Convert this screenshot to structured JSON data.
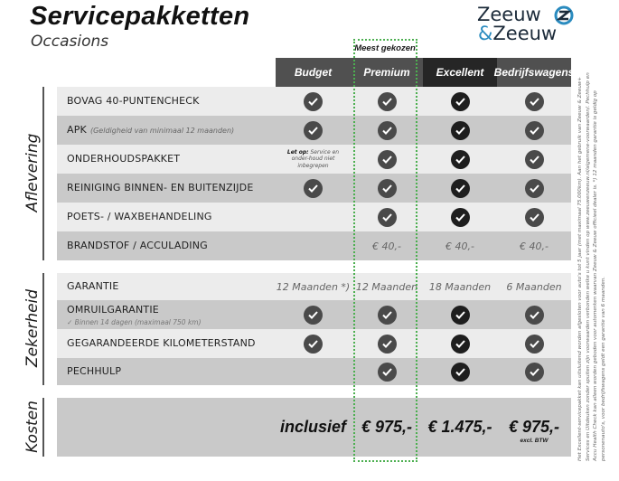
{
  "header": {
    "title": "Servicepakketten",
    "subtitle": "Occasions",
    "logo_line1": "Zeeuw",
    "logo_amp": "&",
    "logo_line2": "Zeeuw",
    "badge": "Meest gekozen"
  },
  "columns": [
    {
      "label": "Budget",
      "bg": "#505050",
      "check": "#4a4a4a"
    },
    {
      "label": "Premium",
      "bg": "#505050",
      "check": "#4a4a4a"
    },
    {
      "label": "Excellent",
      "bg": "#262626",
      "check": "#1e1e1e"
    },
    {
      "label": "Bedrijfswagens",
      "bg": "#505050",
      "check": "#4a4a4a"
    }
  ],
  "sections": [
    {
      "label": "Aflevering",
      "rows": [
        {
          "label": "BOVAG 40-PUNTENCHECK",
          "cells": [
            "check",
            "check",
            "check",
            "check"
          ]
        },
        {
          "label": "APK",
          "note": "(Geldigheid van minimaal 12 maanden)",
          "cells": [
            "check",
            "check",
            "check",
            "check"
          ]
        },
        {
          "label": "ONDERHOUDSPAKKET",
          "cells": [
            "",
            "check",
            "check",
            "check"
          ],
          "budget_note_bold": "Let op:",
          "budget_note": "Service en onder-houd niet inbegrepen"
        },
        {
          "label": "REINIGING BINNEN- EN BUITENZIJDE",
          "cells": [
            "check",
            "check",
            "check",
            "check"
          ]
        },
        {
          "label": "POETS- / WAXBEHANDELING",
          "cells": [
            "",
            "check",
            "check",
            "check"
          ]
        },
        {
          "label": "BRANDSTOF / ACCULADING",
          "cells": [
            "",
            "€ 40,-",
            "€ 40,-",
            "€ 40,-"
          ]
        }
      ]
    },
    {
      "label": "Zekerheid",
      "rows": [
        {
          "label": "GARANTIE",
          "cells": [
            "12 Maanden *)",
            "12 Maanden",
            "18 Maanden",
            "6 Maanden"
          ]
        },
        {
          "label": "OMRUILGARANTIE",
          "sub": "✓   Binnen 14 dagen (maximaal 750 km)",
          "cells": [
            "check",
            "check",
            "check",
            "check"
          ]
        },
        {
          "label": "GEGARANDEERDE KILOMETERSTAND",
          "cells": [
            "check",
            "check",
            "check",
            "check"
          ]
        },
        {
          "label": "PECHHULP",
          "cells": [
            "",
            "check",
            "check",
            "check"
          ]
        }
      ]
    },
    {
      "label": "Kosten",
      "prices": [
        "inclusief",
        "€ 975,-",
        "€ 1.475,-",
        "€ 975,-"
      ],
      "price_note": "excl. BTW"
    }
  ],
  "footnote": "Het Excellent-servicepakket kan uitsluitend worden afgesloten voor auto's tot 5 jaar (met maximaal 75.000km). Aan het gebruik van Zeeuw & Zeeuw+ Services en Uitdeuken zonder spuiten zijn voorwaarden verbonden welke u kunt vinden op www.zeeuwenzeeuw.nl/algemene-voorwaarden/. Pechhulp en Accu Health Check kan alleen worden geboden voor automerken waarvan Zeeuw & Zeeuw officieel dealer is. *) 12 maanden garantie is geldig op personenauto's, voor bedrijfswagens geldt een garantie van 6 maanden.",
  "colors": {
    "row_light": "#ececec",
    "row_dark": "#c9c9c9",
    "highlight": "#4caf50",
    "logo_accent": "#2a8bbf"
  }
}
